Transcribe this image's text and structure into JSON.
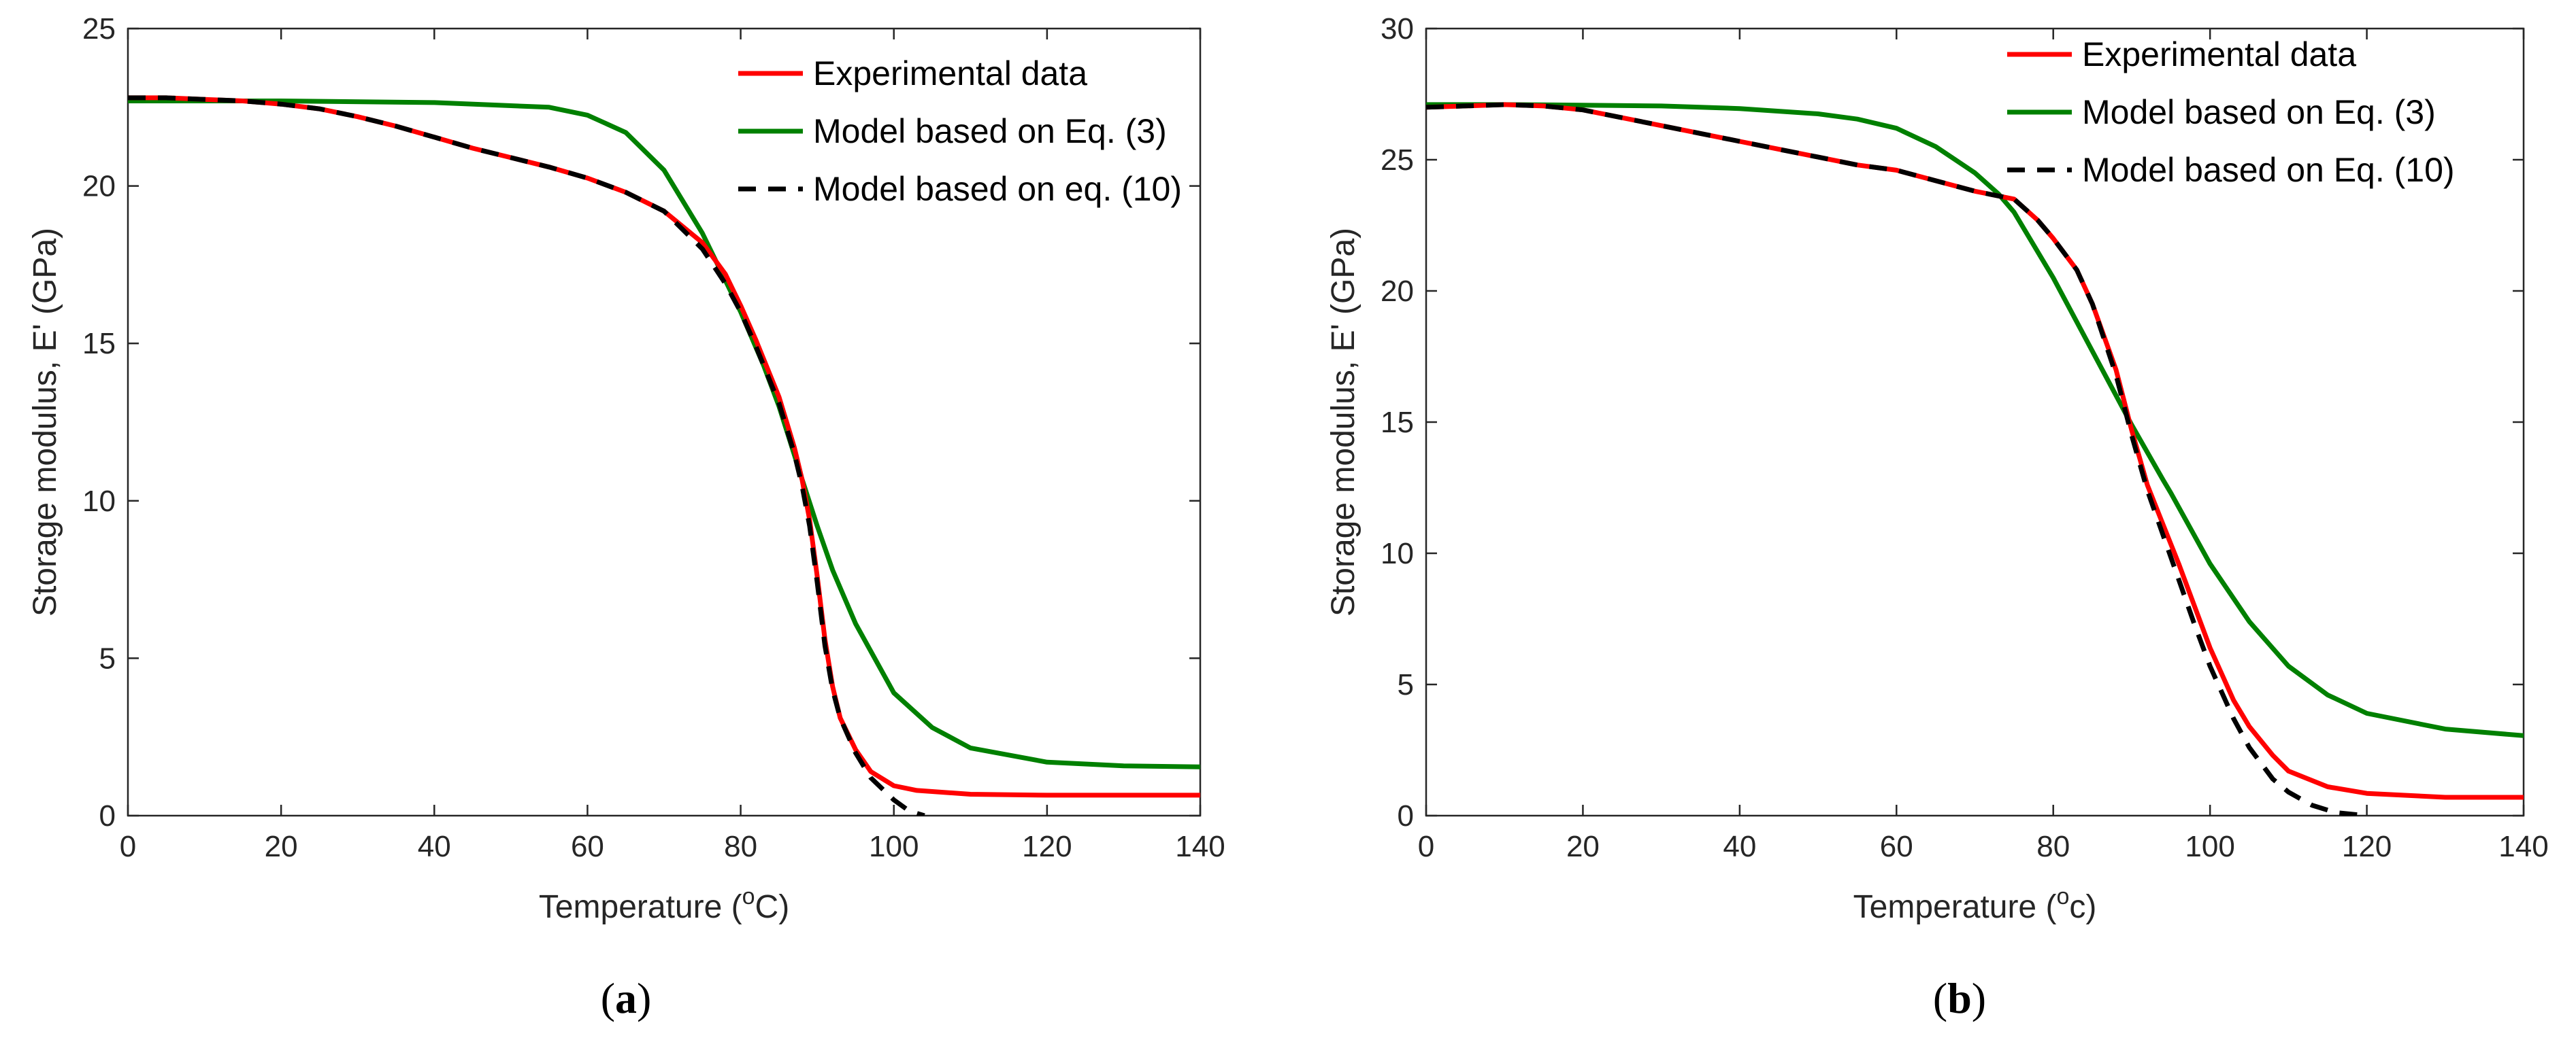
{
  "colors": {
    "experimental": "#ff0000",
    "model_eq3": "#008000",
    "model_eq10": "#000000",
    "axis": "#262626"
  },
  "chart_data": [
    {
      "type": "line",
      "caption_open": "(",
      "caption_letter": "a",
      "caption_close": ")",
      "xlabel_prefix": "Temperature (",
      "xlabel_super": "o",
      "xlabel_unit": "C",
      "xlabel_suffix": ")",
      "ylabel": "Storage modulus, E' (GPa)",
      "xlim": [
        0,
        140
      ],
      "ylim": [
        0,
        25
      ],
      "xticks": [
        0,
        20,
        40,
        60,
        80,
        100,
        120,
        140
      ],
      "yticks": [
        0,
        5,
        10,
        15,
        20,
        25
      ],
      "legend_position": "top-right",
      "series": [
        {
          "name": "Experimental data",
          "style": "solid",
          "color_key": "experimental",
          "x": [
            0,
            5,
            10,
            15,
            20,
            25,
            30,
            35,
            40,
            45,
            50,
            55,
            60,
            65,
            70,
            75,
            78,
            80,
            82,
            85,
            87,
            88,
            89,
            90,
            91,
            92,
            93,
            95,
            97,
            100,
            103,
            110,
            120,
            130,
            140
          ],
          "y": [
            22.8,
            22.8,
            22.75,
            22.7,
            22.6,
            22.45,
            22.2,
            21.9,
            21.55,
            21.2,
            20.9,
            20.6,
            20.25,
            19.8,
            19.2,
            18.2,
            17.2,
            16.2,
            15.1,
            13.3,
            11.7,
            10.7,
            9.4,
            7.6,
            5.6,
            4.1,
            3.1,
            2.1,
            1.4,
            0.95,
            0.8,
            0.68,
            0.65,
            0.65,
            0.65
          ]
        },
        {
          "name": "Model based on Eq. (3)",
          "style": "solid",
          "color_key": "model_eq3",
          "x": [
            0,
            20,
            40,
            55,
            60,
            65,
            70,
            75,
            78,
            80,
            83,
            85,
            88,
            90,
            92,
            95,
            100,
            105,
            110,
            120,
            130,
            140
          ],
          "y": [
            22.7,
            22.7,
            22.65,
            22.5,
            22.25,
            21.7,
            20.5,
            18.5,
            17.0,
            16.0,
            14.3,
            13.0,
            10.7,
            9.2,
            7.8,
            6.1,
            3.9,
            2.8,
            2.15,
            1.7,
            1.58,
            1.55
          ]
        },
        {
          "name": "Model based on eq. (10)",
          "style": "dashed",
          "color_key": "model_eq10",
          "x": [
            0,
            5,
            10,
            15,
            20,
            25,
            30,
            35,
            40,
            45,
            50,
            55,
            60,
            65,
            70,
            75,
            78,
            80,
            82,
            85,
            87,
            88,
            89,
            90,
            91,
            92,
            93,
            95,
            97,
            100,
            102,
            104
          ],
          "y": [
            22.8,
            22.8,
            22.75,
            22.7,
            22.6,
            22.45,
            22.2,
            21.9,
            21.55,
            21.2,
            20.9,
            20.6,
            20.25,
            19.8,
            19.2,
            18.0,
            16.9,
            16.0,
            14.9,
            13.1,
            11.5,
            10.5,
            9.2,
            7.4,
            5.4,
            4.0,
            3.1,
            2.0,
            1.2,
            0.5,
            0.15,
            0.0
          ]
        }
      ]
    },
    {
      "type": "line",
      "caption_open": "(",
      "caption_letter": "b",
      "caption_close": ")",
      "xlabel_prefix": "Temperature (",
      "xlabel_super": "o",
      "xlabel_unit": "c",
      "xlabel_suffix": ")",
      "ylabel": "Storage modulus, E' (GPa)",
      "xlim": [
        0,
        140
      ],
      "ylim": [
        0,
        30
      ],
      "xticks": [
        0,
        20,
        40,
        60,
        80,
        100,
        120,
        140
      ],
      "yticks": [
        0,
        5,
        10,
        15,
        20,
        25,
        30
      ],
      "legend_position": "top-right",
      "series": [
        {
          "name": "Experimental data",
          "style": "solid",
          "color_key": "experimental",
          "x": [
            0,
            5,
            10,
            15,
            20,
            25,
            30,
            35,
            40,
            45,
            50,
            55,
            60,
            65,
            70,
            75,
            78,
            80,
            83,
            85,
            88,
            90,
            92,
            94,
            96,
            98,
            100,
            103,
            105,
            108,
            110,
            115,
            120,
            130,
            140
          ],
          "y": [
            27.0,
            27.05,
            27.1,
            27.05,
            26.9,
            26.6,
            26.3,
            26.0,
            25.7,
            25.4,
            25.1,
            24.8,
            24.6,
            24.2,
            23.8,
            23.5,
            22.7,
            22.0,
            20.8,
            19.5,
            17.0,
            14.7,
            12.6,
            11.1,
            9.6,
            8.0,
            6.4,
            4.4,
            3.4,
            2.3,
            1.7,
            1.1,
            0.85,
            0.7,
            0.7
          ]
        },
        {
          "name": "Model based on Eq. (3)",
          "style": "solid",
          "color_key": "model_eq3",
          "x": [
            0,
            10,
            20,
            30,
            40,
            50,
            55,
            60,
            65,
            70,
            73,
            75,
            80,
            85,
            90,
            94,
            95,
            100,
            105,
            110,
            115,
            120,
            130,
            140
          ],
          "y": [
            27.1,
            27.1,
            27.08,
            27.05,
            26.95,
            26.75,
            26.55,
            26.2,
            25.5,
            24.5,
            23.7,
            23.0,
            20.5,
            17.7,
            14.9,
            12.8,
            12.3,
            9.6,
            7.4,
            5.7,
            4.6,
            3.9,
            3.3,
            3.05
          ]
        },
        {
          "name": "Model based on Eq. (10)",
          "style": "dashed",
          "color_key": "model_eq10",
          "x": [
            0,
            5,
            10,
            15,
            20,
            25,
            30,
            35,
            40,
            45,
            50,
            55,
            60,
            65,
            70,
            75,
            78,
            80,
            83,
            85,
            88,
            90,
            92,
            94,
            96,
            98,
            100,
            103,
            105,
            108,
            110,
            113,
            116,
            120
          ],
          "y": [
            27.0,
            27.05,
            27.1,
            27.05,
            26.9,
            26.6,
            26.3,
            26.0,
            25.7,
            25.4,
            25.1,
            24.8,
            24.6,
            24.2,
            23.8,
            23.5,
            22.7,
            22.0,
            20.8,
            19.5,
            16.8,
            14.5,
            12.4,
            10.7,
            9.0,
            7.3,
            5.7,
            3.7,
            2.6,
            1.4,
            0.9,
            0.4,
            0.12,
            0.0
          ]
        }
      ]
    }
  ]
}
